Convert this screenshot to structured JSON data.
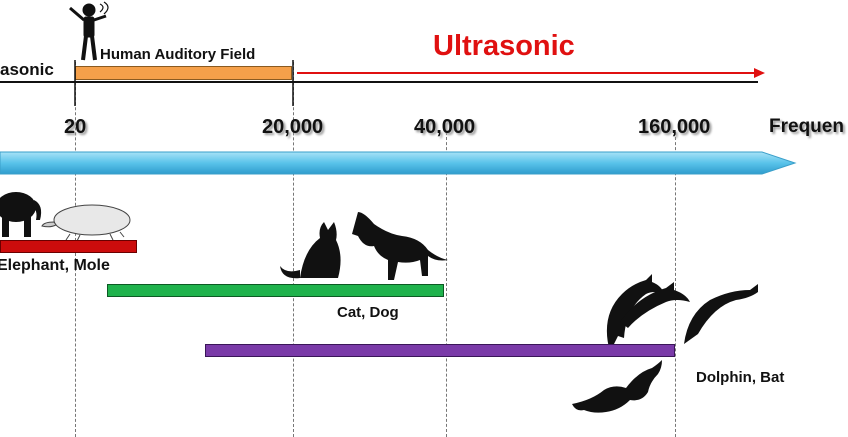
{
  "top": {
    "infrasonic_label": "asonic",
    "human_label": "Human Auditory Field",
    "ultrasonic_label": "Ultrasonic"
  },
  "axis": {
    "title": "Frequen",
    "ticks": [
      "20",
      "20,000",
      "40,000",
      "160,000"
    ]
  },
  "animals": {
    "elephant_mole": "Elephant, Mole",
    "cat_dog": "Cat, Dog",
    "dolphin_bat": "Dolphin, Bat"
  },
  "colors": {
    "infrasonic_bar": "#cc1111",
    "human_bar": "#f5a04a",
    "ultrasonic": "#e01010",
    "axis_arrow": "#59c3ea",
    "elephant_mole_bar": "#cc0c0c",
    "cat_dog_bar": "#1fb24c",
    "dolphin_bat_bar": "#7a3aa8"
  }
}
